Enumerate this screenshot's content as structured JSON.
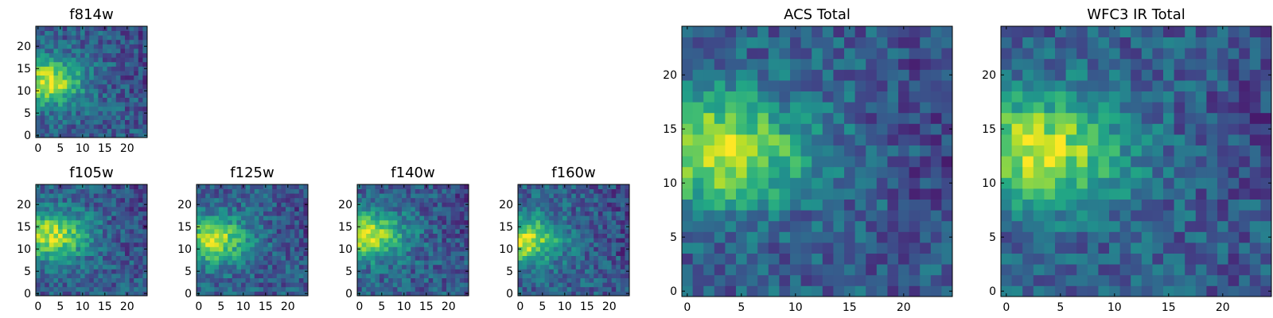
{
  "chart_data": [
    {
      "type": "heatmap",
      "title": "f814w",
      "x_ticks": [
        0,
        5,
        10,
        15,
        20
      ],
      "y_ticks": [
        0,
        5,
        10,
        15,
        20
      ],
      "xlim": [
        -0.5,
        24.5
      ],
      "ylim": [
        -0.5,
        24.5
      ],
      "grid": false,
      "colormap": "viridis",
      "grid_size": [
        25,
        25
      ],
      "bright_center": [
        2,
        12
      ]
    },
    {
      "type": "heatmap",
      "title": "f105w",
      "x_ticks": [
        0,
        5,
        10,
        15,
        20
      ],
      "y_ticks": [
        0,
        5,
        10,
        15,
        20
      ],
      "xlim": [
        -0.5,
        24.5
      ],
      "ylim": [
        -0.5,
        24.5
      ],
      "grid": false,
      "colormap": "viridis",
      "grid_size": [
        25,
        25
      ],
      "bright_center": [
        3,
        13
      ]
    },
    {
      "type": "heatmap",
      "title": "f125w",
      "x_ticks": [
        0,
        5,
        10,
        15,
        20
      ],
      "y_ticks": [
        0,
        5,
        10,
        15,
        20
      ],
      "xlim": [
        -0.5,
        24.5
      ],
      "ylim": [
        -0.5,
        24.5
      ],
      "grid": false,
      "colormap": "viridis",
      "grid_size": [
        25,
        25
      ],
      "bright_center": [
        3,
        12
      ]
    },
    {
      "type": "heatmap",
      "title": "f140w",
      "x_ticks": [
        0,
        5,
        10,
        15,
        20
      ],
      "y_ticks": [
        0,
        5,
        10,
        15,
        20
      ],
      "xlim": [
        -0.5,
        24.5
      ],
      "ylim": [
        -0.5,
        24.5
      ],
      "grid": false,
      "colormap": "viridis",
      "grid_size": [
        25,
        25
      ],
      "bright_center": [
        2,
        13
      ]
    },
    {
      "type": "heatmap",
      "title": "f160w",
      "x_ticks": [
        0,
        5,
        10,
        15,
        20
      ],
      "y_ticks": [
        0,
        5,
        10,
        15,
        20
      ],
      "xlim": [
        -0.5,
        24.5
      ],
      "ylim": [
        -0.5,
        24.5
      ],
      "grid": false,
      "colormap": "viridis",
      "grid_size": [
        25,
        25
      ],
      "bright_center": [
        1,
        12
      ]
    },
    {
      "type": "heatmap",
      "title": "ACS Total",
      "x_ticks": [
        0,
        5,
        10,
        15,
        20
      ],
      "y_ticks": [
        0,
        5,
        10,
        15,
        20
      ],
      "xlim": [
        -0.5,
        24.5
      ],
      "ylim": [
        -0.5,
        24.5
      ],
      "grid": false,
      "colormap": "viridis",
      "grid_size": [
        25,
        25
      ],
      "bright_center": [
        3,
        13
      ]
    },
    {
      "type": "heatmap",
      "title": "WFC3 IR Total",
      "x_ticks": [
        0,
        5,
        10,
        15,
        20
      ],
      "y_ticks": [
        0,
        5,
        10,
        15,
        20
      ],
      "xlim": [
        -0.5,
        24.5
      ],
      "ylim": [
        -0.5,
        24.5
      ],
      "grid": false,
      "colormap": "viridis",
      "grid_size": [
        25,
        25
      ],
      "bright_center": [
        3,
        13
      ]
    }
  ]
}
